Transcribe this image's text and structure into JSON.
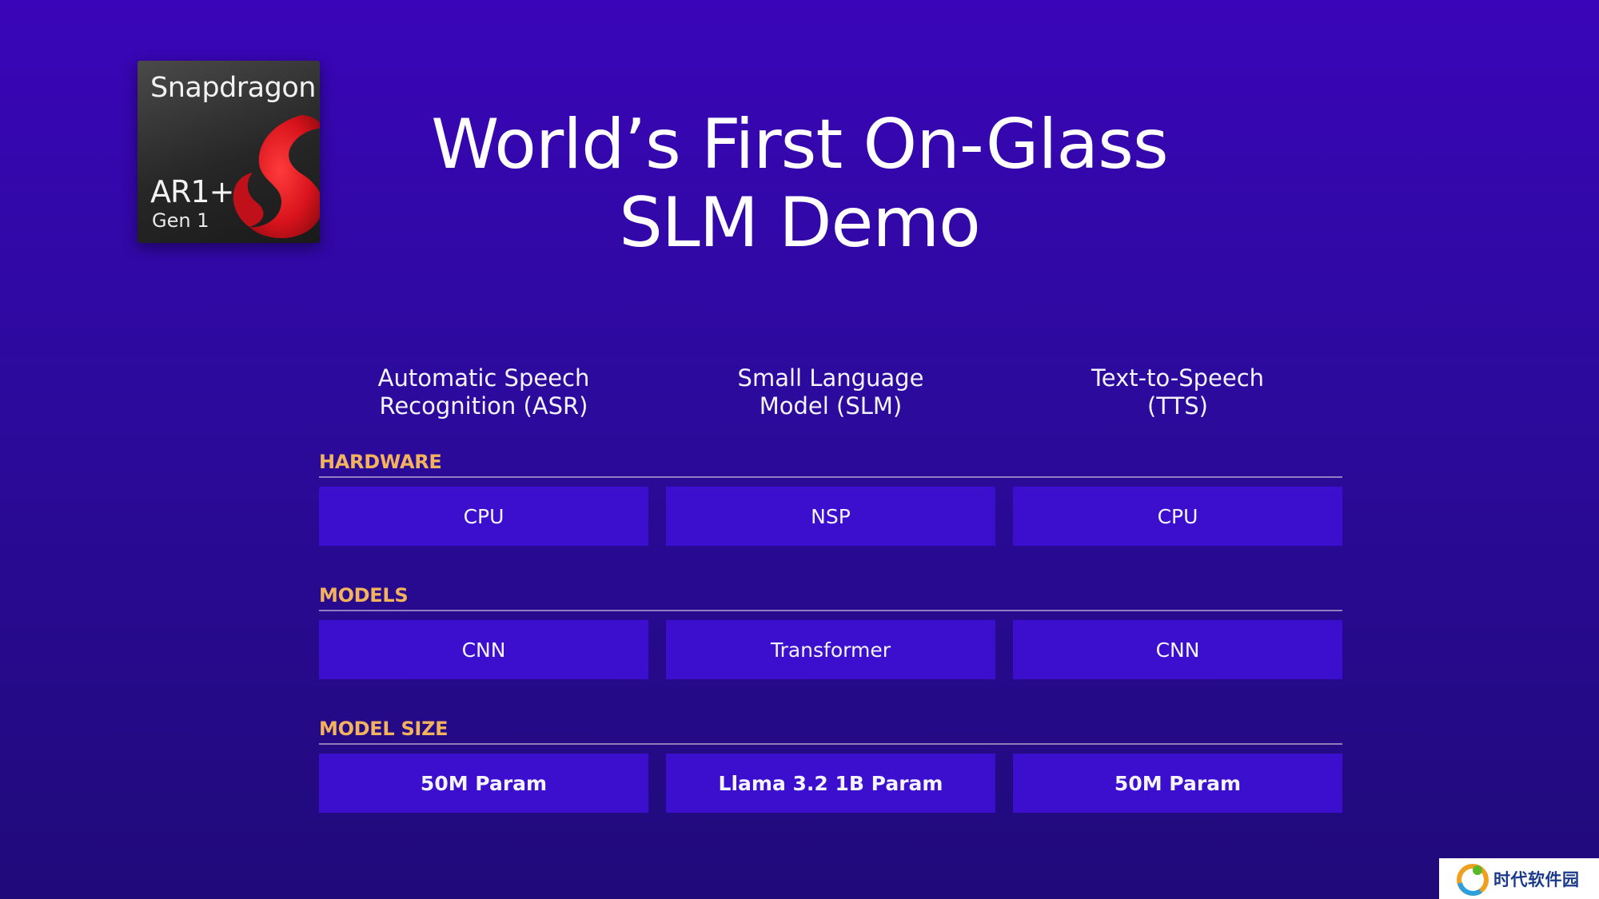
{
  "logo": {
    "brand": "Snapdragon",
    "model": "AR1+",
    "generation": "Gen 1"
  },
  "title": {
    "line1": "World’s First On-Glass",
    "line2": "SLM Demo"
  },
  "columns": [
    {
      "line1": "Automatic Speech",
      "line2": "Recognition (ASR)"
    },
    {
      "line1": "Small Language",
      "line2": "Model (SLM)"
    },
    {
      "line1": "Text-to-Speech",
      "line2": "(TTS)"
    }
  ],
  "sections": [
    {
      "label": "HARDWARE",
      "cells": [
        "CPU",
        "NSP",
        "CPU"
      ]
    },
    {
      "label": "MODELS",
      "cells": [
        "CNN",
        "Transformer",
        "CNN"
      ]
    },
    {
      "label": "MODEL SIZE",
      "cells": [
        "50M Param",
        "Llama 3.2 1B Param",
        "50M Param"
      ]
    }
  ],
  "watermark": {
    "text": "时代软件园"
  },
  "colors": {
    "background": "#3a05b8",
    "cell": "#3c0fce",
    "section_label": "#f3b35c",
    "logo_red": "#e8202a"
  }
}
